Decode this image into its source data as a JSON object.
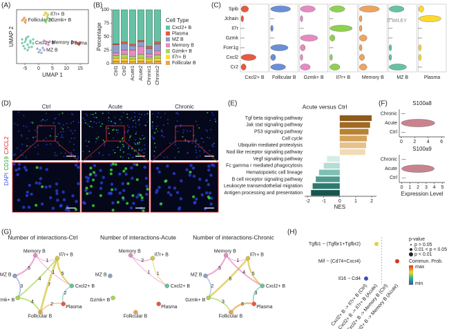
{
  "panel_labels": [
    "(A)",
    "(B)",
    "(C)",
    "(D)",
    "(E)",
    "(F)",
    "(G)",
    "(H)"
  ],
  "microscopy": {
    "conditions": [
      "Ctrl",
      "Acute",
      "Chronic"
    ],
    "stain_labels": [
      "DAPI",
      "CD19",
      "CXCL2"
    ]
  },
  "chart_data": [
    {
      "type": "scatter",
      "xlabel": "UMAP 1",
      "ylabel": "UMAP 2",
      "xlim": [
        -8,
        18
      ],
      "xticks": [
        -5,
        0,
        5,
        10,
        15
      ],
      "ylim": [
        -10,
        10
      ],
      "series": [
        {
          "name": "Follicular B",
          "color": "#e5984f",
          "x": [
            -6,
            -5.5,
            -5,
            -4.6,
            -5.2,
            -4.8
          ],
          "y": [
            6,
            6.5,
            5.6,
            6.2,
            7,
            5.2
          ]
        },
        {
          "name": "Il7r+ B",
          "color": "#d6c53a",
          "x": [
            2,
            2.8,
            3.5,
            3.1,
            2.4
          ],
          "y": [
            8,
            8.6,
            8.2,
            7.6,
            8.9
          ]
        },
        {
          "name": "Gzmk+ B",
          "color": "#7cc26b",
          "x": [
            2.2,
            3,
            3.8,
            2.6,
            3.3
          ],
          "y": [
            6,
            6.4,
            5.8,
            5.4,
            6.9
          ]
        },
        {
          "name": "Cxcl2+ B",
          "color": "#5fbf9f",
          "x": [
            -6,
            -5,
            -4,
            -3,
            -2,
            -5.5,
            -4.5,
            -3.5,
            -2.5,
            -4,
            -3,
            -5,
            -2,
            -6,
            -3.8,
            -4.6
          ],
          "y": [
            -1,
            -2,
            -3,
            -1.5,
            -2.5,
            -3.5,
            -0.5,
            -4,
            -3.8,
            -5,
            -2.2,
            -4.4,
            -1,
            -2.4,
            0,
            -1.2
          ]
        },
        {
          "name": "Memory B",
          "color": "#c47ab8",
          "x": [
            2,
            3,
            4,
            3.5,
            2.6
          ],
          "y": [
            -1.5,
            -2,
            -1.8,
            -3,
            -2.6
          ]
        },
        {
          "name": "MZ B",
          "color": "#8da0cb",
          "x": [
            -0.5,
            0.5,
            1.5,
            0,
            1,
            2
          ],
          "y": [
            -4.5,
            -5,
            -4.2,
            -5.8,
            -6,
            -5
          ]
        },
        {
          "name": "Plasma",
          "color": "#e24a33",
          "x": [
            13.5,
            14.2,
            15,
            14.6
          ],
          "y": [
            -2,
            -2.6,
            -2.2,
            -3
          ]
        }
      ]
    },
    {
      "type": "stacked_bar",
      "ylabel": "Percentage",
      "legend_title": "Cell Type",
      "categories": [
        "Ctrl1",
        "Ctrl2",
        "Acute1",
        "Acute2",
        "Chronic1",
        "Chronic2"
      ],
      "ylim": [
        0,
        100
      ],
      "yticks": [
        0,
        25,
        50,
        75,
        100
      ],
      "series": [
        {
          "name": "Cxcl2+ B",
          "color": "#66c2a5",
          "values": [
            63,
            60,
            64,
            57,
            68,
            60
          ]
        },
        {
          "name": "Plasma",
          "color": "#e8593f",
          "values": [
            2,
            3,
            3,
            3,
            4,
            4
          ]
        },
        {
          "name": "MZ B",
          "color": "#8da0cb",
          "values": [
            15,
            12,
            8,
            8,
            10,
            12
          ]
        },
        {
          "name": "Memory B",
          "color": "#e78ac3",
          "values": [
            5,
            8,
            12,
            15,
            6,
            8
          ]
        },
        {
          "name": "Gzmk+ B",
          "color": "#a6d854",
          "values": [
            5,
            7,
            5,
            7,
            4,
            6
          ]
        },
        {
          "name": "Il7r+ B",
          "color": "#ffd92f",
          "values": [
            5,
            5,
            4,
            5,
            4,
            5
          ]
        },
        {
          "name": "Follicular B",
          "color": "#e5a84f",
          "values": [
            5,
            5,
            4,
            5,
            4,
            5
          ]
        }
      ]
    },
    {
      "type": "violin_grid",
      "watermark": "© WILEY",
      "genes": [
        "Spib",
        "Jchain",
        "Il7r",
        "Gzmk",
        "Fcer1g",
        "Cxcl2",
        "Cr2"
      ],
      "series": [
        {
          "name": "Cxcl2+ B",
          "color": "#e8593f",
          "values": [
            0.3,
            0.1,
            0,
            0,
            0,
            0.6,
            0.2
          ]
        },
        {
          "name": "Follicular B",
          "color": "#6a8fd8",
          "values": [
            0.8,
            0,
            0.1,
            0,
            0.7,
            0.2,
            0.6
          ]
        },
        {
          "name": "Gzmk+ B",
          "color": "#e78ac3",
          "values": [
            0.6,
            0.1,
            0,
            0.7,
            0.2,
            0.1,
            0.4
          ]
        },
        {
          "name": "Il7r+ B",
          "color": "#8fd14f",
          "values": [
            0.6,
            0,
            0.9,
            0.2,
            0,
            0.1,
            0.4
          ]
        },
        {
          "name": "Memory B",
          "color": "#f0a35e",
          "values": [
            0.8,
            0.1,
            0.1,
            0.3,
            0.1,
            0.2,
            0.3
          ]
        },
        {
          "name": "MZ B",
          "color": "#66c2a5",
          "values": [
            0.6,
            0,
            0,
            0,
            0.1,
            0.1,
            0.7
          ]
        },
        {
          "name": "Plasma",
          "color": "#ffd92f",
          "values": [
            0.2,
            0.9,
            0,
            0,
            0.1,
            0.1,
            0
          ]
        }
      ]
    },
    {
      "type": "hbar",
      "title": "Acute versus Ctrl",
      "xlabel": "NES",
      "categories": [
        "Tgf beta signaling pathway",
        "Jak stat signaling pathway",
        "P53 signaling pathway",
        "Cell cycle",
        "Ubiquitin mediated proteolysis",
        "Nod like receptor signaling pathway",
        "Vegf signaling pathway",
        "Fc gamma r mediated phagocytosis",
        "Hematopoietic cell lineage",
        "B cell receptor signaling pathway",
        "Leukocyte transendothelial migration",
        "Antigen processing and presentation"
      ],
      "values": [
        2.0,
        1.9,
        1.8,
        1.7,
        1.65,
        1.6,
        -0.8,
        -1.0,
        -1.3,
        -1.5,
        -1.7,
        -1.8
      ],
      "colors": [
        "#8c5a1c",
        "#a06a25",
        "#b98232",
        "#d3a25b",
        "#e6c189",
        "#f1dbb5",
        "#d5ece8",
        "#b3ddd5",
        "#7fbfb3",
        "#4e9a8f",
        "#2f7a70",
        "#16564e"
      ],
      "xlim": [
        -2.2,
        2.3
      ],
      "xticks": [
        -2,
        -1,
        0,
        1,
        2
      ]
    },
    {
      "type": "violin",
      "title": "S100a8",
      "categories": [
        "Chronic",
        "Acute",
        "Ctrl"
      ],
      "values": [
        0,
        2.5,
        0
      ],
      "color": "#c9838f",
      "xlim": [
        -0.3,
        6.5
      ],
      "xticks": [
        0,
        2,
        4,
        6
      ]
    },
    {
      "type": "violin",
      "title": "S100a9",
      "xlabel": "Expression Level",
      "categories": [
        "Chronic",
        "Acute",
        "Ctrl"
      ],
      "values": [
        0,
        2,
        0
      ],
      "color": "#c9838f",
      "xlim": [
        -0.3,
        5.3
      ],
      "xticks": [
        0,
        1,
        2,
        3,
        4,
        5
      ]
    },
    {
      "type": "network",
      "title": "Number of interactions-Ctrl",
      "nodes": [
        {
          "name": "Memory B",
          "color": "#e78ac3"
        },
        {
          "name": "Il7r+ B",
          "color": "#d6c53a"
        },
        {
          "name": "Cxcl2+ B",
          "color": "#66c2a5"
        },
        {
          "name": "Plasma",
          "color": "#e8593f"
        },
        {
          "name": "Follicular B",
          "color": "#e5a84f"
        },
        {
          "name": "Gzmk+ B",
          "color": "#a6d854"
        },
        {
          "name": "MZ B",
          "color": "#8da0cb"
        }
      ],
      "edges": [
        {
          "from": "Memory B",
          "to": "Il7r+ B",
          "value": 1
        },
        {
          "from": "Il7r+ B",
          "to": "Cxcl2+ B",
          "value": 5
        },
        {
          "from": "MZ B",
          "to": "Gzmk+ B",
          "value": 3
        },
        {
          "from": "Gzmk+ B",
          "to": "Follicular B",
          "value": 4
        },
        {
          "from": "Follicular B",
          "to": "Plasma",
          "value": 2
        },
        {
          "from": "Memory B",
          "to": "MZ B",
          "value": 5
        },
        {
          "from": "Il7r+ B",
          "to": "Follicular B",
          "value": 7
        },
        {
          "from": "Cxcl2+ B",
          "to": "Plasma",
          "value": 2
        },
        {
          "from": "Gzmk+ B",
          "to": "Il7r+ B",
          "value": 4
        },
        {
          "from": "Memory B",
          "to": "Cxcl2+ B",
          "value": 1
        }
      ]
    },
    {
      "type": "network",
      "title": "Number of interactions-Acute",
      "nodes": [
        {
          "name": "Memory B",
          "color": "#e78ac3"
        },
        {
          "name": "Il7r+ B",
          "color": "#d6c53a"
        },
        {
          "name": "Cxcl2+ B",
          "color": "#66c2a5"
        },
        {
          "name": "Plasma",
          "color": "#e8593f"
        },
        {
          "name": "Follicular B",
          "color": "#e5a84f"
        },
        {
          "name": "Gzmk+ B",
          "color": "#a6d854"
        },
        {
          "name": "MZ B",
          "color": "#8da0cb"
        }
      ],
      "edges": [
        {
          "from": "Memory B",
          "to": "Il7r+ B",
          "value": 2
        },
        {
          "from": "Memory B",
          "to": "Cxcl2+ B",
          "value": 1
        },
        {
          "from": "Il7r+ B",
          "to": "Cxcl2+ B",
          "value": 1
        }
      ]
    },
    {
      "type": "network",
      "title": "Number of interactions-Chronic",
      "nodes": [
        {
          "name": "Memory B",
          "color": "#e78ac3"
        },
        {
          "name": "Il7r+ B",
          "color": "#d6c53a"
        },
        {
          "name": "Cxcl2+ B",
          "color": "#66c2a5"
        },
        {
          "name": "Plasma",
          "color": "#e8593f"
        },
        {
          "name": "Follicular B",
          "color": "#e5a84f"
        },
        {
          "name": "Gzmk+ B",
          "color": "#a6d854"
        },
        {
          "name": "MZ B",
          "color": "#8da0cb"
        }
      ],
      "edges": [
        {
          "from": "Memory B",
          "to": "Il7r+ B",
          "value": 1
        },
        {
          "from": "Il7r+ B",
          "to": "Cxcl2+ B",
          "value": 5
        },
        {
          "from": "MZ B",
          "to": "Gzmk+ B",
          "value": 2
        },
        {
          "from": "Gzmk+ B",
          "to": "Follicular B",
          "value": 3
        },
        {
          "from": "Follicular B",
          "to": "Plasma",
          "value": 6
        },
        {
          "from": "Memory B",
          "to": "MZ B",
          "value": 5
        },
        {
          "from": "Il7r+ B",
          "to": "Gzmk+ B",
          "value": 6
        },
        {
          "from": "Cxcl2+ B",
          "to": "Plasma",
          "value": 3
        },
        {
          "from": "Memory B",
          "to": "Cxcl2+ B",
          "value": 4
        }
      ]
    },
    {
      "type": "dot",
      "rows": [
        "Tgfb1 − (Tgfbr1+Tgfbr2)",
        "Mif − (Cd74+Cxcr4)",
        "Il16 − Cd4"
      ],
      "columns": [
        "Cxcl2+ B -> Il7r+ B (Ctrl)",
        "Cxcl2+ B -> Il7r+ B (Acute)",
        "Cxcl2+ B -> Memory B (Ctrl)",
        "Cxcl2+ B -> Memory B (Acute)"
      ],
      "column_colors": [
        "#4daf4a",
        "#e78ac3",
        "#4daf4a",
        "#e78ac3"
      ],
      "values": [
        [
          null,
          0.7,
          null,
          null
        ],
        [
          null,
          null,
          null,
          1
        ],
        [
          0.2,
          null,
          null,
          null
        ]
      ],
      "legend": {
        "p_title": "p-value",
        "p_labels": [
          "p > 0.05",
          "0.01 < p < 0.05",
          "p < 0.01"
        ],
        "color_title": "Commun. Prob.",
        "color_max": "max",
        "color_min": "min"
      }
    }
  ]
}
